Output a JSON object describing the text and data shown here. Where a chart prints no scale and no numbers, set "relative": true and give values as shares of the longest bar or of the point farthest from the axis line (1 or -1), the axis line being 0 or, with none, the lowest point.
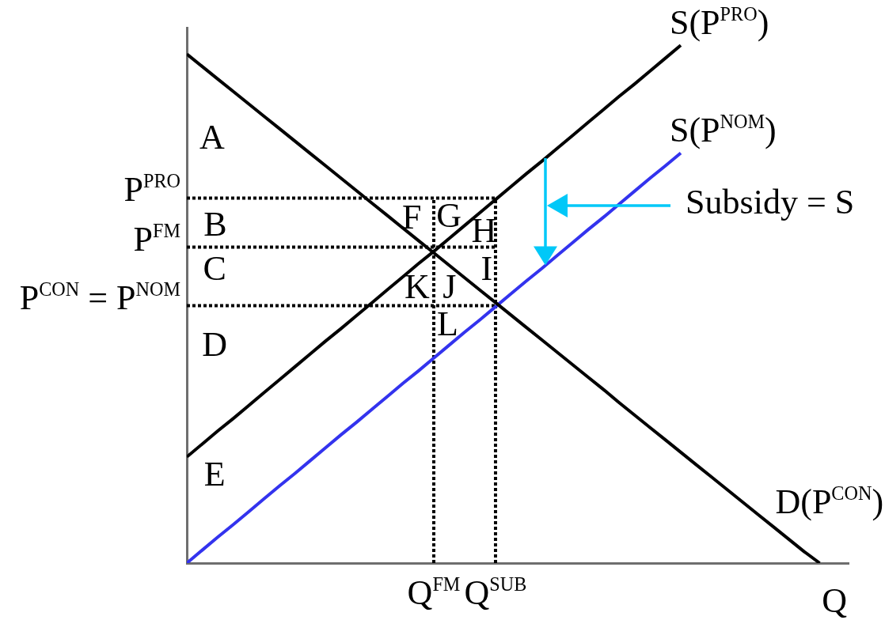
{
  "chart_data": {
    "type": "line",
    "relative": true,
    "xlabel": "Q",
    "categories": [
      null,
      null,
      null,
      null,
      null,
      null,
      null,
      null,
      null,
      null,
      null,
      null,
      null,
      null,
      null,
      null,
      "Q$^{FM}$",
      null,
      null,
      null,
      "Q$^{SUB}$",
      null,
      null,
      null,
      null,
      null,
      null,
      null,
      null,
      null,
      null,
      null,
      null,
      null,
      null,
      null,
      null,
      null,
      null,
      null,
      null,
      null
    ],
    "series": [
      {
        "name": "D(P$^{CON}$)",
        "color": "#000000",
        "values": [
          0.983,
          0.959,
          0.935,
          0.911,
          0.887,
          0.863,
          0.839,
          0.815,
          0.791,
          0.767,
          0.743,
          0.719,
          0.695,
          0.671,
          0.647,
          0.623,
          0.599,
          0.575,
          0.551,
          0.527,
          0.503,
          0.479,
          0.455,
          0.431,
          0.407,
          0.383,
          0.359,
          0.335,
          0.31,
          0.286,
          0.262,
          0.238,
          0.214,
          0.19,
          0.166,
          0.142,
          0.118,
          0.094,
          0.07,
          0.046,
          0.022,
          0
        ]
      },
      {
        "name": "S(P$^{PRO}$)",
        "color": "#000000",
        "values": [
          0.205,
          0.23,
          0.255,
          0.279,
          0.304,
          0.329,
          0.354,
          0.379,
          0.404,
          0.429,
          0.453,
          0.478,
          0.503,
          0.528,
          0.553,
          0.578,
          0.602,
          0.627,
          0.652,
          0.677,
          0.702,
          0.727,
          0.752,
          0.776,
          0.801,
          0.826,
          0.851,
          0.876,
          0.901,
          0.925,
          0.95,
          0.975,
          1,
          null,
          null,
          null,
          null,
          null,
          null,
          null,
          null,
          null
        ]
      },
      {
        "name": "S(P$^{NOM}$)",
        "color": "#3333ee",
        "values": [
          0,
          0.025,
          0.05,
          0.074,
          0.099,
          0.124,
          0.149,
          0.173,
          0.198,
          0.223,
          0.248,
          0.272,
          0.297,
          0.322,
          0.347,
          0.371,
          0.396,
          0.421,
          0.446,
          0.47,
          0.495,
          0.52,
          0.545,
          0.569,
          0.594,
          0.619,
          0.644,
          0.668,
          0.693,
          0.718,
          0.743,
          0.767,
          0.792,
          null,
          null,
          null,
          null,
          null,
          null,
          null,
          null,
          null
        ]
      },
      {
        "name": "P$^{PRO}$",
        "color": "#000000",
        "line_style": "dotted",
        "values": [
          0.705,
          0.705,
          0.705,
          0.705,
          0.705,
          0.705,
          0.705,
          0.705,
          0.705,
          0.705,
          0.705,
          0.705,
          0.705,
          0.705,
          0.705,
          0.705,
          0.705,
          0.705,
          0.705,
          0.705,
          0.705,
          null,
          null,
          null,
          null,
          null,
          null,
          null,
          null,
          null,
          null,
          null,
          null,
          null,
          null,
          null,
          null,
          null,
          null,
          null,
          null,
          null
        ]
      },
      {
        "name": "P$^{FM}$",
        "color": "#000000",
        "line_style": "dotted",
        "values": [
          0.61,
          0.61,
          0.61,
          0.61,
          0.61,
          0.61,
          0.61,
          0.61,
          0.61,
          0.61,
          0.61,
          0.61,
          0.61,
          0.61,
          0.61,
          0.61,
          0.61,
          0.61,
          0.61,
          0.61,
          0.61,
          null,
          null,
          null,
          null,
          null,
          null,
          null,
          null,
          null,
          null,
          null,
          null,
          null,
          null,
          null,
          null,
          null,
          null,
          null,
          null,
          null
        ]
      },
      {
        "name": "P$^{CON}$ = P$^{NOM}$",
        "color": "#000000",
        "line_style": "dotted",
        "values": [
          0.497,
          0.497,
          0.497,
          0.497,
          0.497,
          0.497,
          0.497,
          0.497,
          0.497,
          0.497,
          0.497,
          0.497,
          0.497,
          0.497,
          0.497,
          0.497,
          0.497,
          0.497,
          0.497,
          0.497,
          0.497,
          null,
          null,
          null,
          null,
          null,
          null,
          null,
          null,
          null,
          null,
          null,
          null,
          null,
          null,
          null,
          null,
          null,
          null,
          null,
          null,
          null
        ]
      },
      {
        "color": "#000000",
        "line_style": "dotted",
        "x": [
          "Q$^{FM}$",
          "Q$^{FM}$"
        ],
        "values": [
          0,
          0.705
        ]
      },
      {
        "color": "#000000",
        "line_style": "dotted",
        "x": [
          "Q$^{SUB}$",
          "Q$^{SUB}$"
        ],
        "values": [
          0,
          0.705
        ]
      }
    ],
    "annotations": [
      "A",
      "B",
      "F",
      "G",
      "H",
      "C",
      "I",
      "K",
      "J",
      "L",
      "D",
      "E",
      "Subsidy = S"
    ]
  }
}
